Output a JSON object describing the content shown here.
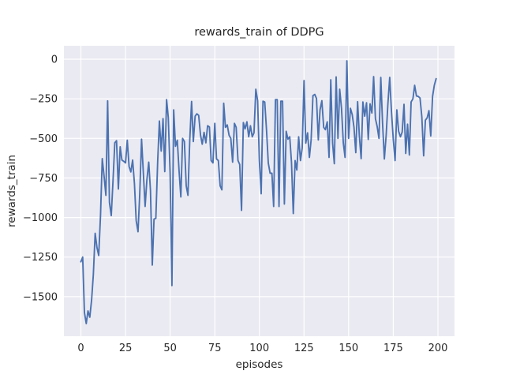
{
  "chart_data": {
    "type": "line",
    "title": "rewards_train of DDPG",
    "xlabel": "episodes",
    "ylabel": "rewards_train",
    "style": "seaborn-darkgrid",
    "grid": true,
    "legend": false,
    "xlim": [
      -9.5,
      209.3
    ],
    "ylim": [
      -1750,
      85
    ],
    "x_tick_values": [
      0,
      25,
      50,
      75,
      100,
      125,
      150,
      175,
      200
    ],
    "x_tick_labels": [
      "0",
      "25",
      "50",
      "75",
      "100",
      "125",
      "150",
      "175",
      "200"
    ],
    "y_tick_values": [
      0,
      -250,
      -500,
      -750,
      -1000,
      -1250,
      -1500
    ],
    "y_tick_labels": [
      "0",
      "−250",
      "−500",
      "−750",
      "−1000",
      "−1250",
      "−1500"
    ],
    "colors": {
      "line": "#4c72b0",
      "plot_bg": "#eaeaf2",
      "grid": "#ffffff",
      "text": "#262626",
      "figure_bg": "#ffffff"
    },
    "series": [
      {
        "name": "rewards_train of DDPG",
        "x_start": 0,
        "x_step": 1,
        "values": [
          -1280,
          -1250,
          -1600,
          -1670,
          -1590,
          -1630,
          -1520,
          -1360,
          -1100,
          -1190,
          -1240,
          -985,
          -628,
          -740,
          -860,
          -263,
          -905,
          -988,
          -770,
          -528,
          -515,
          -820,
          -553,
          -637,
          -645,
          -655,
          -512,
          -678,
          -712,
          -637,
          -787,
          -1020,
          -1090,
          -853,
          -505,
          -720,
          -930,
          -760,
          -650,
          -830,
          -1300,
          -1010,
          -1005,
          -650,
          -390,
          -580,
          -375,
          -710,
          -255,
          -370,
          -720,
          -1430,
          -320,
          -550,
          -512,
          -703,
          -870,
          -500,
          -520,
          -800,
          -860,
          -510,
          -267,
          -520,
          -360,
          -345,
          -355,
          -478,
          -537,
          -462,
          -528,
          -420,
          -428,
          -640,
          -655,
          -405,
          -630,
          -640,
          -800,
          -825,
          -278,
          -430,
          -415,
          -480,
          -500,
          -650,
          -405,
          -430,
          -640,
          -665,
          -955,
          -400,
          -440,
          -395,
          -490,
          -420,
          -490,
          -465,
          -190,
          -262,
          -640,
          -850,
          -265,
          -270,
          -450,
          -655,
          -720,
          -720,
          -930,
          -255,
          -255,
          -930,
          -265,
          -265,
          -915,
          -455,
          -505,
          -490,
          -650,
          -975,
          -640,
          -700,
          -490,
          -640,
          -560,
          -135,
          -530,
          -465,
          -620,
          -510,
          -230,
          -222,
          -248,
          -510,
          -320,
          -262,
          -430,
          -445,
          -395,
          -620,
          -130,
          -530,
          -660,
          -112,
          -500,
          -190,
          -310,
          -530,
          -620,
          -10,
          -500,
          -310,
          -350,
          -430,
          -590,
          -268,
          -485,
          -628,
          -270,
          -360,
          -275,
          -507,
          -282,
          -340,
          -110,
          -375,
          -425,
          -500,
          -115,
          -400,
          -630,
          -480,
          -280,
          -115,
          -330,
          -505,
          -640,
          -320,
          -455,
          -490,
          -460,
          -285,
          -595,
          -410,
          -605,
          -270,
          -250,
          -165,
          -232,
          -235,
          -245,
          -365,
          -610,
          -385,
          -370,
          -325,
          -485,
          -235,
          -165,
          -123
        ]
      }
    ]
  }
}
